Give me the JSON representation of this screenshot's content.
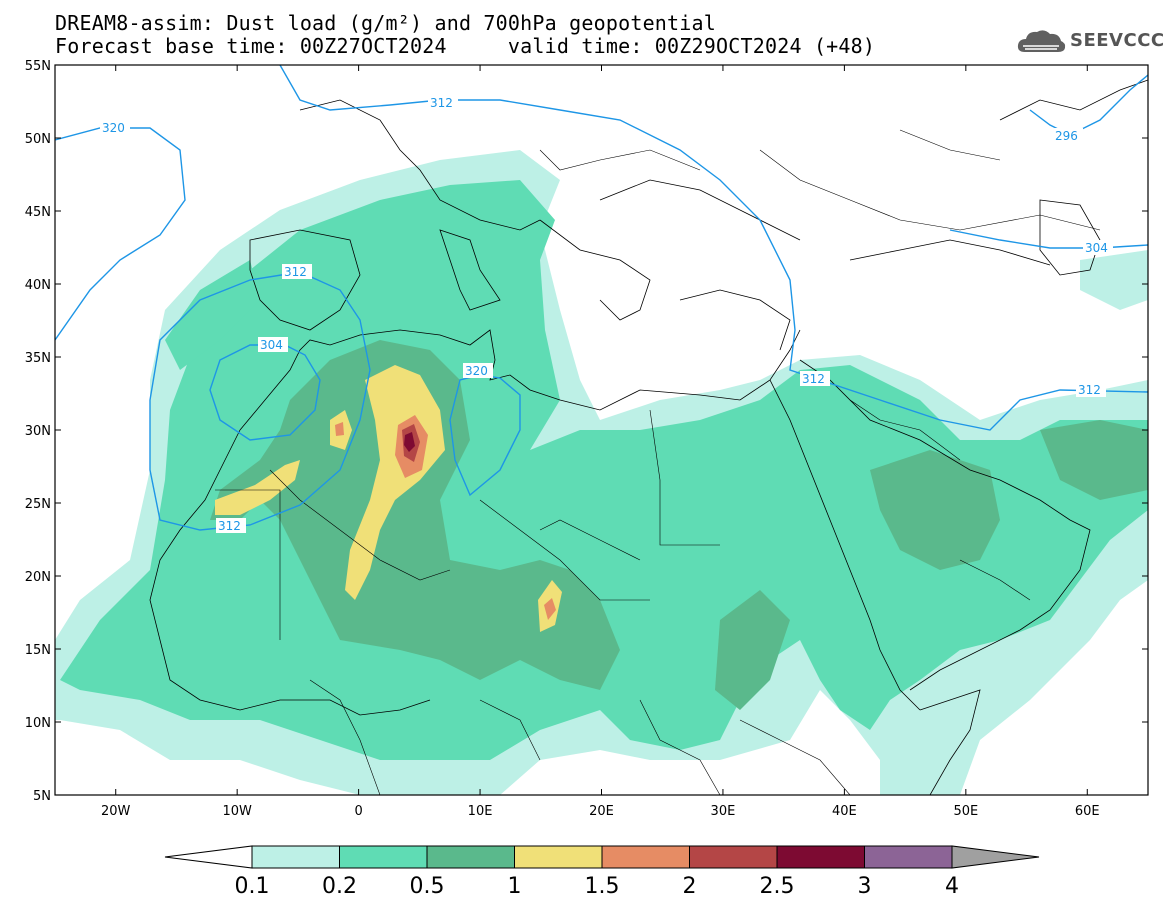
{
  "title": {
    "line1": "DREAM8-assim: Dust load (g/m²) and 700hPa geopotential",
    "line2": "Forecast base time: 00Z27OCT2024     valid time: 00Z29OCT2024 (+48)"
  },
  "logo": {
    "text": "SEEVCCC",
    "icon": "cloud-icon"
  },
  "map": {
    "lat_ticks": [
      "55N",
      "50N",
      "45N",
      "40N",
      "35N",
      "30N",
      "25N",
      "20N",
      "15N",
      "10N",
      "5N"
    ],
    "lon_ticks": [
      "20W",
      "10W",
      "0",
      "10E",
      "20E",
      "30E",
      "40E",
      "50E",
      "60E"
    ],
    "lat_range": [
      5,
      55
    ],
    "lon_range": [
      -25,
      65
    ],
    "contour_labels": [
      "312",
      "320",
      "296",
      "312",
      "304",
      "312",
      "304",
      "320",
      "312",
      "312"
    ]
  },
  "colorbar": {
    "labels": [
      "0.1",
      "0.2",
      "0.5",
      "1",
      "1.5",
      "2",
      "2.5",
      "3",
      "4"
    ],
    "colors": [
      "#bdf0e6",
      "#5fdcb4",
      "#5ab98c",
      "#f0e078",
      "#e68c64",
      "#b44646",
      "#7d0a32",
      "#8c6496"
    ],
    "under_color": "#ffffff",
    "over_color": "#a0a0a0"
  },
  "colors": {
    "dust_lightest": "#bdf0e6",
    "dust_light": "#5fdcb4",
    "dust_mid": "#5ab98c",
    "dust_yellow": "#f0e078",
    "dust_orange": "#e68c64",
    "dust_red": "#b44646",
    "dust_darkred": "#7d0a32",
    "contour": "#1e96e6"
  }
}
